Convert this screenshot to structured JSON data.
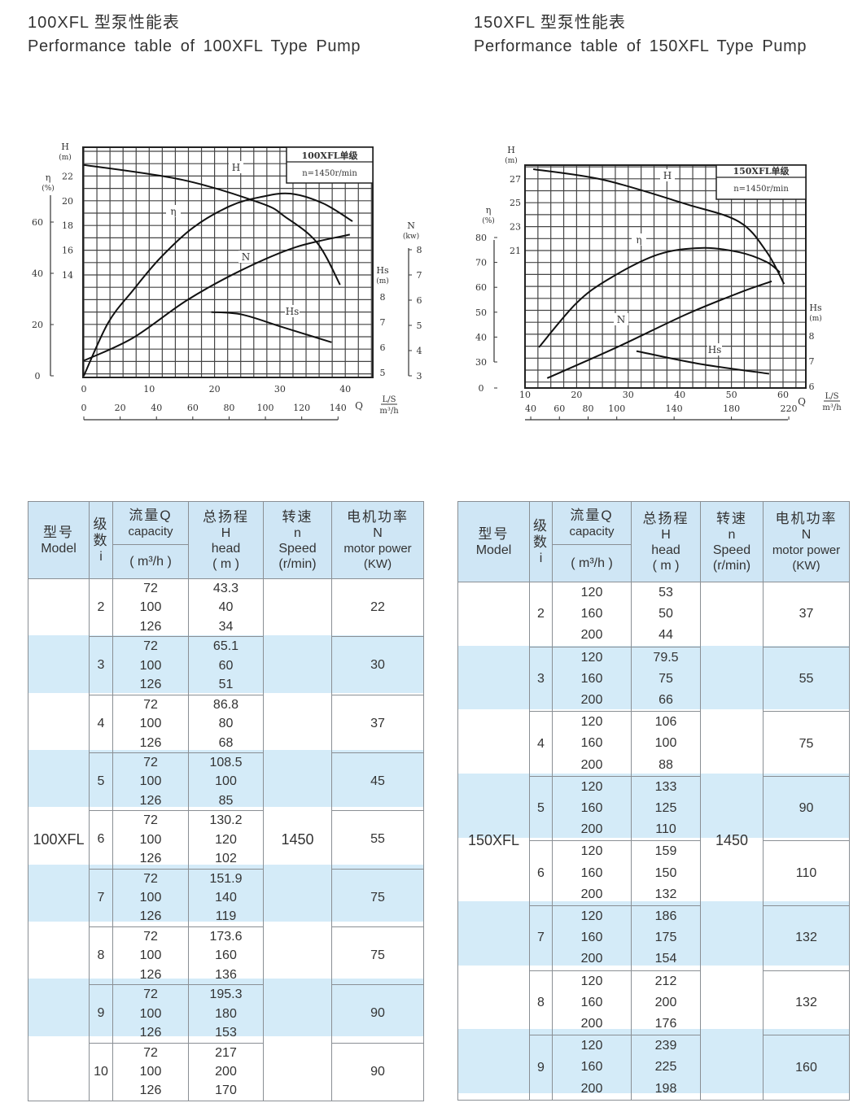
{
  "sections": [
    {
      "title_cn": "100XFL 型泵性能表",
      "title_en": "Performance table of 100XFL Type Pump"
    },
    {
      "title_cn": "150XFL 型泵性能表",
      "title_en": "Performance table of 150XFL Type Pump"
    }
  ],
  "table_header": {
    "model_cn": "型号",
    "model_en": "Model",
    "stage_cn": "级数",
    "stage_en": "i",
    "capacity_cn": "流量Q",
    "capacity_en": "capacity",
    "capacity_unit": "( m³/h )",
    "head_cn": "总扬程",
    "head_sym": "H",
    "head_en": "head",
    "head_unit": "( m )",
    "speed_cn": "转速",
    "speed_sym": "n",
    "speed_en": "Speed",
    "speed_unit": "(r/min)",
    "power_cn": "电机功率",
    "power_sym": "N",
    "power_en": "motor power",
    "power_unit": "(KW)"
  },
  "tables": [
    {
      "model": "100XFL",
      "speed": "1450",
      "row_shade": "#d4ebf8",
      "header_shade": "#cfe6f5",
      "rows": [
        {
          "stage": "2",
          "capacity": [
            "72",
            "100",
            "126"
          ],
          "head": [
            "43.3",
            "40",
            "34"
          ],
          "power": "22"
        },
        {
          "stage": "3",
          "capacity": [
            "72",
            "100",
            "126"
          ],
          "head": [
            "65.1",
            "60",
            "51"
          ],
          "power": "30"
        },
        {
          "stage": "4",
          "capacity": [
            "72",
            "100",
            "126"
          ],
          "head": [
            "86.8",
            "80",
            "68"
          ],
          "power": "37"
        },
        {
          "stage": "5",
          "capacity": [
            "72",
            "100",
            "126"
          ],
          "head": [
            "108.5",
            "100",
            "85"
          ],
          "power": "45"
        },
        {
          "stage": "6",
          "capacity": [
            "72",
            "100",
            "126"
          ],
          "head": [
            "130.2",
            "120",
            "102"
          ],
          "power": "55"
        },
        {
          "stage": "7",
          "capacity": [
            "72",
            "100",
            "126"
          ],
          "head": [
            "151.9",
            "140",
            "119"
          ],
          "power": "75"
        },
        {
          "stage": "8",
          "capacity": [
            "72",
            "100",
            "126"
          ],
          "head": [
            "173.6",
            "160",
            "136"
          ],
          "power": "75"
        },
        {
          "stage": "9",
          "capacity": [
            "72",
            "100",
            "126"
          ],
          "head": [
            "195.3",
            "180",
            "153"
          ],
          "power": "90"
        },
        {
          "stage": "10",
          "capacity": [
            "72",
            "100",
            "126"
          ],
          "head": [
            "217",
            "200",
            "170"
          ],
          "power": "90"
        }
      ]
    },
    {
      "model": "150XFL",
      "speed": "1450",
      "row_shade": "#d4ebf8",
      "header_shade": "#cfe6f5",
      "rows": [
        {
          "stage": "2",
          "capacity": [
            "120",
            "160",
            "200"
          ],
          "head": [
            "53",
            "50",
            "44"
          ],
          "power": "37"
        },
        {
          "stage": "3",
          "capacity": [
            "120",
            "160",
            "200"
          ],
          "head": [
            "79.5",
            "75",
            "66"
          ],
          "power": "55"
        },
        {
          "stage": "4",
          "capacity": [
            "120",
            "160",
            "200"
          ],
          "head": [
            "106",
            "100",
            "88"
          ],
          "power": "75"
        },
        {
          "stage": "5",
          "capacity": [
            "120",
            "160",
            "200"
          ],
          "head": [
            "133",
            "125",
            "110"
          ],
          "power": "90"
        },
        {
          "stage": "6",
          "capacity": [
            "120",
            "160",
            "200"
          ],
          "head": [
            "159",
            "150",
            "132"
          ],
          "power": "110"
        },
        {
          "stage": "7",
          "capacity": [
            "120",
            "160",
            "200"
          ],
          "head": [
            "186",
            "175",
            "154"
          ],
          "power": "132"
        },
        {
          "stage": "8",
          "capacity": [
            "120",
            "160",
            "200"
          ],
          "head": [
            "212",
            "200",
            "176"
          ],
          "power": "132"
        },
        {
          "stage": "9",
          "capacity": [
            "120",
            "160",
            "200"
          ],
          "head": [
            "239",
            "225",
            "198"
          ],
          "power": "160"
        }
      ]
    }
  ],
  "chart_data": [
    {
      "type": "line",
      "grid": true,
      "legend_box": [
        "100XFL单级",
        "n=1450r/min"
      ],
      "xlabel": "Q",
      "x_unit_labels": [
        "L/S",
        "m³/h"
      ],
      "x_ticks_ls": [
        0,
        10,
        20,
        30,
        40
      ],
      "x_ticks_m3h": [
        0,
        20,
        40,
        60,
        80,
        100,
        120,
        140
      ],
      "axes": {
        "H": {
          "label": "H",
          "unit": "(m)",
          "ticks": [
            14,
            16,
            18,
            20,
            22
          ]
        },
        "eta": {
          "label": "η",
          "unit": "(%)",
          "ticks": [
            0,
            20,
            40,
            60
          ]
        },
        "N": {
          "label": "N",
          "unit": "(kw)",
          "ticks": [
            3,
            4,
            5,
            6,
            7,
            8
          ]
        },
        "Hs": {
          "label": "Hs",
          "unit": "(m)",
          "ticks": [
            5,
            6,
            7,
            8
          ]
        }
      },
      "series": [
        {
          "name": "H",
          "axis": "H",
          "points": [
            [
              0,
              22.9
            ],
            [
              15,
              21.7
            ],
            [
              27.1,
              19.8
            ],
            [
              30.8,
              18.7
            ],
            [
              35.7,
              16.6
            ],
            [
              39.2,
              13.2
            ]
          ]
        },
        {
          "name": "η",
          "axis": "eta",
          "points": [
            [
              0,
              0
            ],
            [
              3.7,
              20.6
            ],
            [
              7.5,
              33.3
            ],
            [
              11.7,
              46
            ],
            [
              16.7,
              57.8
            ],
            [
              22.4,
              66.3
            ],
            [
              27.1,
              69.8
            ],
            [
              31.6,
              71.1
            ],
            [
              36.6,
              67.3
            ],
            [
              41.1,
              60.3
            ]
          ]
        },
        {
          "name": "N",
          "axis": "N",
          "points": [
            [
              0,
              3.6
            ],
            [
              7.5,
              4.5
            ],
            [
              15.8,
              6.0
            ],
            [
              24.2,
              7.2
            ],
            [
              32.4,
              8.1
            ],
            [
              40.7,
              8.6
            ]
          ]
        },
        {
          "name": "Hs",
          "axis": "Hs",
          "points": [
            [
              19.5,
              7.4
            ],
            [
              24.2,
              7.3
            ],
            [
              30.4,
              6.8
            ],
            [
              37.9,
              6.2
            ]
          ]
        }
      ]
    },
    {
      "type": "line",
      "grid": true,
      "legend_box": [
        "150XFL单级",
        "n=1450r/min"
      ],
      "xlabel": "Q",
      "x_unit_labels": [
        "L/S",
        "m³/h"
      ],
      "x_ticks_ls": [
        10,
        20,
        30,
        40,
        50,
        60
      ],
      "x_ticks_m3h": [
        40,
        60,
        80,
        100,
        140,
        180,
        220
      ],
      "axes": {
        "H": {
          "label": "H",
          "unit": "(m)",
          "ticks": [
            21,
            23,
            25,
            27
          ]
        },
        "eta": {
          "label": "η",
          "unit": "(%)",
          "ticks": [
            0,
            30,
            40,
            50,
            60,
            70,
            80
          ]
        },
        "Hs": {
          "label": "Hs",
          "unit": "(m)",
          "ticks": [
            6,
            7,
            8
          ]
        }
      },
      "series": [
        {
          "name": "H",
          "axis": "H",
          "points": [
            [
              11.6,
              27.8
            ],
            [
              25.3,
              26.9
            ],
            [
              41.1,
              24.9
            ],
            [
              51.5,
              23.4
            ],
            [
              56.8,
              20.9
            ],
            [
              60.2,
              18.2
            ]
          ]
        },
        {
          "name": "η",
          "axis": "eta",
          "points": [
            [
              12.7,
              35.9
            ],
            [
              19.9,
              53.5
            ],
            [
              26.2,
              63.3
            ],
            [
              35.7,
              73.1
            ],
            [
              44.2,
              75.8
            ],
            [
              51.5,
              74.1
            ],
            [
              56.8,
              70.2
            ],
            [
              59.4,
              66.0
            ]
          ]
        },
        {
          "name": "N",
          "axis": "eta",
          "points": [
            [
              14.3,
              23.5
            ],
            [
              27.8,
              35.9
            ],
            [
              41.1,
              49.0
            ],
            [
              51.5,
              57.8
            ],
            [
              57.8,
              62.4
            ]
          ]
        },
        {
          "name": "Hs",
          "axis": "Hs",
          "points": [
            [
              31.6,
              7.4
            ],
            [
              43.6,
              6.9
            ],
            [
              57.3,
              6.5
            ]
          ]
        }
      ]
    }
  ]
}
